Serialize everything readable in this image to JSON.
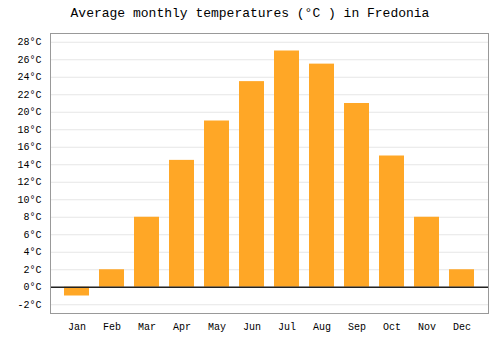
{
  "chart_data": {
    "type": "bar",
    "title": "Average monthly temperatures (°C ) in Fredonia",
    "categories": [
      "Jan",
      "Feb",
      "Mar",
      "Apr",
      "May",
      "Jun",
      "Jul",
      "Aug",
      "Sep",
      "Oct",
      "Nov",
      "Dec"
    ],
    "values": [
      -1.0,
      2.0,
      8.0,
      14.5,
      19.0,
      23.5,
      27.0,
      25.5,
      21.0,
      15.0,
      8.0,
      2.0
    ],
    "color": "#FFA726",
    "ylim": [
      -3,
      29
    ],
    "yticks": [
      {
        "value": -2,
        "label": "-2°C"
      },
      {
        "value": 0,
        "label": "0°C"
      },
      {
        "value": 2,
        "label": "2°C"
      },
      {
        "value": 4,
        "label": "4°C"
      },
      {
        "value": 6,
        "label": "6°C"
      },
      {
        "value": 8,
        "label": "8°C"
      },
      {
        "value": 10,
        "label": "10°C"
      },
      {
        "value": 12,
        "label": "12°C"
      },
      {
        "value": 14,
        "label": "14°C"
      },
      {
        "value": 16,
        "label": "16°C"
      },
      {
        "value": 18,
        "label": "18°C"
      },
      {
        "value": 20,
        "label": "20°C"
      },
      {
        "value": 22,
        "label": "22°C"
      },
      {
        "value": 24,
        "label": "24°C"
      },
      {
        "value": 26,
        "label": "26°C"
      },
      {
        "value": 28,
        "label": "28°C"
      }
    ],
    "grid": true
  }
}
